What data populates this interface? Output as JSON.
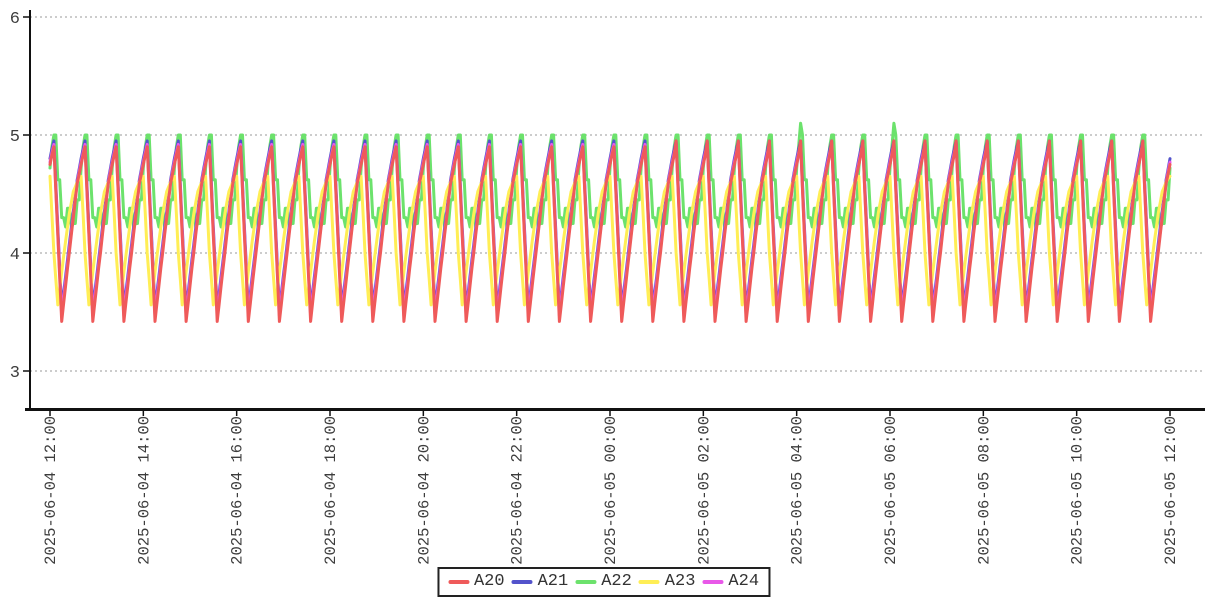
{
  "chart_data": {
    "type": "line",
    "title": "",
    "xlabel": "",
    "ylabel": "",
    "x_start": "2025-06-04 12:00",
    "x_end": "2025-06-05 12:00",
    "sample_interval_minutes": 2.5,
    "points_count": 577,
    "period_minutes": 40,
    "ylim": [
      2.7,
      6.05
    ],
    "y_ticks": [
      3,
      4,
      5,
      6
    ],
    "x_tick_labels": [
      "2025-06-04 12:00",
      "2025-06-04 14:00",
      "2025-06-04 16:00",
      "2025-06-04 18:00",
      "2025-06-04 20:00",
      "2025-06-04 22:00",
      "2025-06-05 00:00",
      "2025-06-05 02:00",
      "2025-06-05 04:00",
      "2025-06-05 06:00",
      "2025-06-05 08:00",
      "2025-06-05 10:00",
      "2025-06-05 12:00"
    ],
    "grid": "horizontal-dashed",
    "grid_color": "#999999",
    "axis_color": "#111111",
    "legend_position": "bottom-center",
    "series": [
      {
        "name": "A20",
        "color": "#ef5a5a",
        "z": 5,
        "phase_offset_samples": 14,
        "pattern": [
          4.9,
          4.53,
          4.15,
          3.79,
          3.42,
          3.57,
          3.72,
          3.87,
          4.01,
          4.16,
          4.3,
          4.45,
          4.59,
          4.67,
          4.75,
          4.83
        ],
        "late_peak_boost": {
          "from_index": 320,
          "value": 4.95
        }
      },
      {
        "name": "A21",
        "color": "#5353cb",
        "z": 2,
        "phase_offset_samples": 14,
        "pattern": [
          4.95,
          4.59,
          4.22,
          3.87,
          3.52,
          3.66,
          3.8,
          3.94,
          4.08,
          4.22,
          4.35,
          4.49,
          4.62,
          4.71,
          4.8,
          4.88
        ]
      },
      {
        "name": "A22",
        "color": "#6ce26c",
        "z": 1,
        "phase_offset_samples": 14,
        "pattern": [
          5.0,
          5.0,
          4.62,
          4.62,
          4.3,
          4.3,
          4.22,
          4.38,
          4.38,
          4.22,
          4.25,
          4.25,
          4.45,
          4.45,
          4.72,
          4.9
        ],
        "anomalies": [
          {
            "index": 386,
            "value": 5.1,
            "time": "2025-06-05 04:05"
          },
          {
            "index": 434,
            "value": 5.1,
            "time": "2025-06-05 06:05"
          }
        ]
      },
      {
        "name": "A23",
        "color": "#ffee55",
        "z": 4,
        "phase_offset_samples": 0,
        "pattern": [
          4.65,
          4.33,
          4.0,
          3.78,
          3.56,
          3.7,
          3.84,
          3.97,
          4.1,
          4.22,
          4.34,
          4.43,
          4.52,
          4.56,
          4.6,
          4.63
        ]
      },
      {
        "name": "A24",
        "color": "#e858e8",
        "z": 3,
        "phase_offset_samples": 14,
        "pattern": [
          4.92,
          4.55,
          4.18,
          3.83,
          3.47,
          3.62,
          3.76,
          3.9,
          4.04,
          4.18,
          4.32,
          4.46,
          4.6,
          4.69,
          4.77,
          4.85
        ]
      }
    ]
  }
}
